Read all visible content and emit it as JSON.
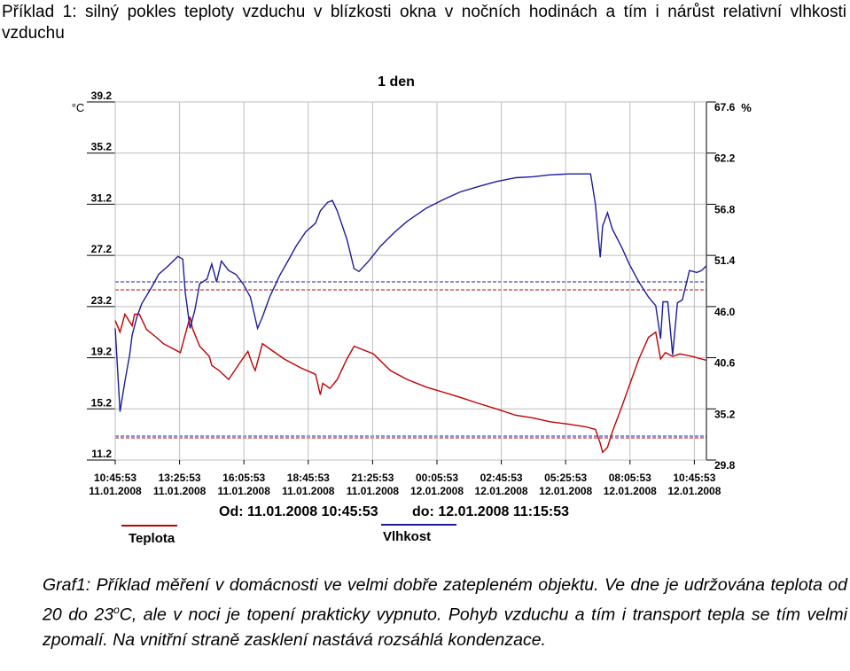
{
  "heading": "Příklad 1: silný pokles teploty vzduchu v blízkosti okna v nočních hodinách a tím i nárůst relativní vlhkosti vzduchu",
  "chart_data": {
    "type": "line",
    "title": "1 den",
    "y_label": "°C",
    "y2_label": "%",
    "annotations": [
      "Od: 11.01.2008 10:45:53",
      "do: 12.01.2008 11:15:53"
    ],
    "xlim": [
      0,
      24.5
    ],
    "xticks": [
      {
        "value": 0,
        "label": "10:45:53"
      },
      {
        "value": 2.6667,
        "label": "13:25:53"
      },
      {
        "value": 5.3333,
        "label": "16:05:53"
      },
      {
        "value": 8,
        "label": "18:45:53"
      },
      {
        "value": 10.6667,
        "label": "21:25:53"
      },
      {
        "value": 13.3333,
        "label": "00:05:53"
      },
      {
        "value": 16,
        "label": "02:45:53"
      },
      {
        "value": 18.6667,
        "label": "05:25:53"
      },
      {
        "value": 21.3333,
        "label": "08:05:53"
      },
      {
        "value": 24,
        "label": "10:45:53"
      }
    ],
    "xtick_dates": [
      "11.01.2008",
      "11.01.2008",
      "11.01.2008",
      "11.01.2008",
      "11.01.2008",
      "12.01.2008",
      "12.01.2008",
      "12.01.2008",
      "12.01.2008",
      "12.01.2008"
    ],
    "ylim": [
      11.2,
      39.2
    ],
    "yticks": [
      11.2,
      15.2,
      19.2,
      23.2,
      27.2,
      31.2,
      35.2,
      39.2
    ],
    "y2lim": [
      29.8,
      67.6
    ],
    "y2ticks": [
      29.8,
      35.2,
      40.6,
      {
        "value": 46,
        "label": "46.0"
      },
      51.4,
      56.8,
      62.2,
      67.6
    ],
    "grid": true,
    "series": [
      {
        "name": "Teplota",
        "color": "#c00000",
        "axis": "y",
        "x": [
          0,
          0.2,
          0.4,
          0.7,
          0.8,
          1.0,
          1.3,
          1.7,
          2.0,
          2.4,
          2.7,
          3.1,
          3.2,
          3.5,
          3.9,
          4.0,
          4.3,
          4.7,
          5.2,
          5.5,
          5.7,
          5.8,
          6.1,
          6.4,
          7.0,
          7.7,
          8.3,
          8.5,
          8.6,
          8.9,
          9.2,
          9.6,
          9.9,
          10.7,
          11.4,
          12.1,
          12.9,
          13.6,
          14.3,
          15.1,
          15.8,
          16.6,
          17.3,
          18.0,
          18.8,
          19.5,
          19.9,
          20.1,
          20.2,
          20.4,
          20.6,
          21.0,
          21.3,
          21.7,
          22.1,
          22.4,
          22.6,
          22.8,
          23.1,
          23.4,
          23.9,
          24.5
        ],
        "values": [
          22.1,
          21.2,
          22.6,
          21.7,
          22.6,
          22.6,
          21.4,
          20.8,
          20.3,
          19.9,
          19.6,
          22.4,
          21.5,
          20.1,
          19.3,
          18.6,
          18.2,
          17.5,
          18.9,
          19.7,
          18.6,
          18.2,
          20.3,
          19.9,
          19.1,
          18.4,
          17.9,
          16.3,
          17.2,
          16.8,
          17.5,
          19.1,
          20.1,
          19.5,
          18.2,
          17.5,
          16.9,
          16.5,
          16.1,
          15.6,
          15.2,
          14.7,
          14.5,
          14.2,
          14.0,
          13.8,
          13.6,
          12.5,
          11.8,
          12.2,
          13.4,
          15.4,
          17.0,
          19.1,
          20.8,
          21.2,
          19.1,
          19.6,
          19.3,
          19.5,
          19.3,
          19.0
        ]
      },
      {
        "name": "Vlhkost",
        "color": "#1c1c9c",
        "axis": "y2",
        "x": [
          0,
          0.2,
          0.4,
          0.6,
          0.7,
          0.9,
          1.1,
          1.5,
          1.8,
          2.2,
          2.6,
          2.8,
          2.9,
          3.1,
          3.3,
          3.5,
          3.8,
          4.0,
          4.2,
          4.4,
          4.7,
          5.0,
          5.3,
          5.6,
          5.9,
          6.1,
          6.4,
          6.8,
          7.2,
          7.5,
          7.9,
          8.3,
          8.5,
          8.8,
          9.0,
          9.2,
          9.6,
          9.9,
          10.1,
          10.5,
          11.0,
          11.6,
          12.1,
          12.9,
          13.6,
          14.3,
          15.1,
          15.8,
          16.6,
          17.3,
          18.0,
          18.8,
          19.7,
          19.9,
          20.1,
          20.2,
          20.4,
          20.6,
          21.0,
          21.3,
          21.7,
          22.1,
          22.4,
          22.6,
          22.7,
          22.9,
          23.1,
          23.3,
          23.5,
          23.8,
          24.1,
          24.3,
          24.5
        ],
        "values": [
          43.7,
          34.9,
          38.1,
          40.9,
          43.0,
          44.9,
          46.3,
          48.0,
          49.4,
          50.3,
          51.3,
          51.0,
          47.5,
          43.7,
          45.6,
          48.4,
          48.9,
          50.5,
          48.6,
          50.8,
          49.8,
          49.4,
          48.4,
          47.0,
          43.7,
          44.9,
          47.0,
          49.2,
          51.0,
          52.4,
          53.9,
          54.8,
          56.1,
          57.0,
          57.2,
          56.1,
          53.1,
          50.0,
          49.7,
          50.8,
          52.4,
          53.9,
          55.0,
          56.4,
          57.3,
          58.1,
          58.7,
          59.2,
          59.6,
          59.7,
          59.9,
          60.0,
          60.0,
          56.8,
          51.2,
          54.5,
          55.9,
          54.2,
          52.2,
          50.5,
          48.6,
          47.0,
          46.1,
          42.6,
          46.5,
          46.5,
          40.9,
          46.4,
          46.7,
          49.8,
          49.6,
          49.8,
          50.3
        ]
      }
    ]
  },
  "caption": {
    "text_1": "Graf1: Příklad měření v domácnosti ve velmi dobře zatepleném objektu. Ve dne je udržována teplota od 20 do 23",
    "superscript": "o",
    "text_2": "C, ale v noci je topení prakticky vypnuto. Pohyb vzduchu a tím i transport tepla se tím velmi zpomalí. Na vnitřní straně zasklení nastává rozsáhlá kondenzace."
  }
}
